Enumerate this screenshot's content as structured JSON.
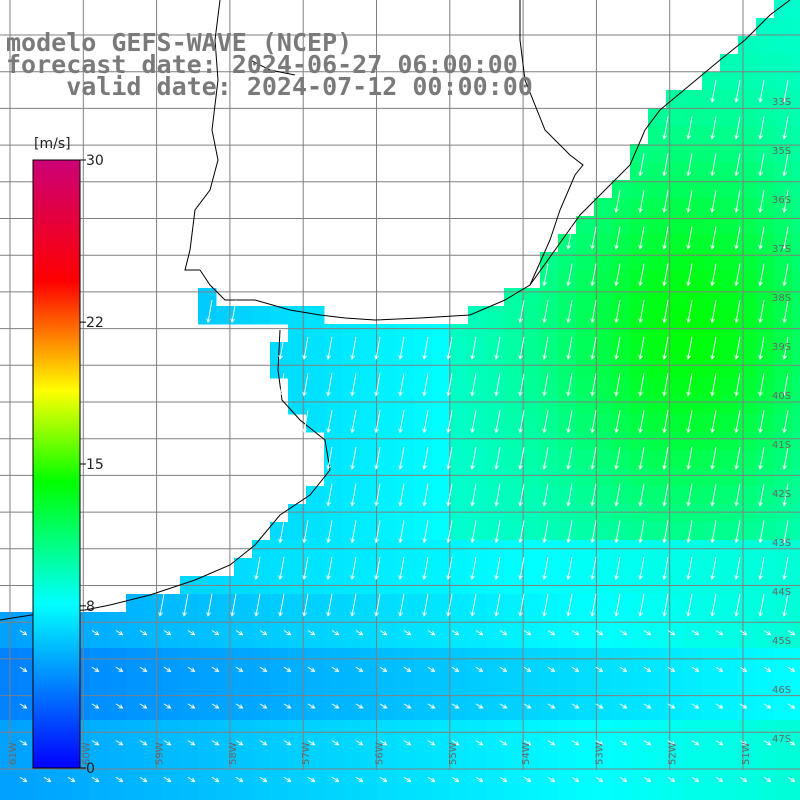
{
  "title": {
    "line1": "modelo GEFS-WAVE (NCEP)",
    "line2": "forecast date: 2024-06-27 06:00:00",
    "line3": "    valid date: 2024-07-12 00:00:00"
  },
  "colorbar": {
    "unit": "[m/s]",
    "min": 0,
    "max": 30,
    "ticks": [
      {
        "value": 30,
        "label": "30"
      },
      {
        "value": 22,
        "label": "22"
      },
      {
        "value": 15,
        "label": "15"
      },
      {
        "value": 8,
        "label": "8"
      },
      {
        "value": 0,
        "label": "0"
      }
    ],
    "colors": [
      "#0000ff",
      "#00ffff",
      "#00ff00",
      "#ffff00",
      "#ff0000",
      "#cc0077"
    ]
  },
  "map": {
    "lat_labels": [
      "33S",
      "35S",
      "36S",
      "37S",
      "38S",
      "39S",
      "40S",
      "41S",
      "42S",
      "43S",
      "44S",
      "45S",
      "46S",
      "47S"
    ],
    "lon_labels": [
      "61W",
      "60W",
      "59W",
      "58W",
      "57W",
      "56W",
      "55W",
      "54W",
      "53W",
      "52W",
      "51W",
      "50W"
    ],
    "ocean_speed_ms": {
      "south_band": 4,
      "coastal_shelf": 7,
      "central_ocean": 9,
      "northeast_core": 13
    },
    "grid_color": "#808080",
    "arrow_color": "#ffffff",
    "coast_color": "#000000"
  }
}
